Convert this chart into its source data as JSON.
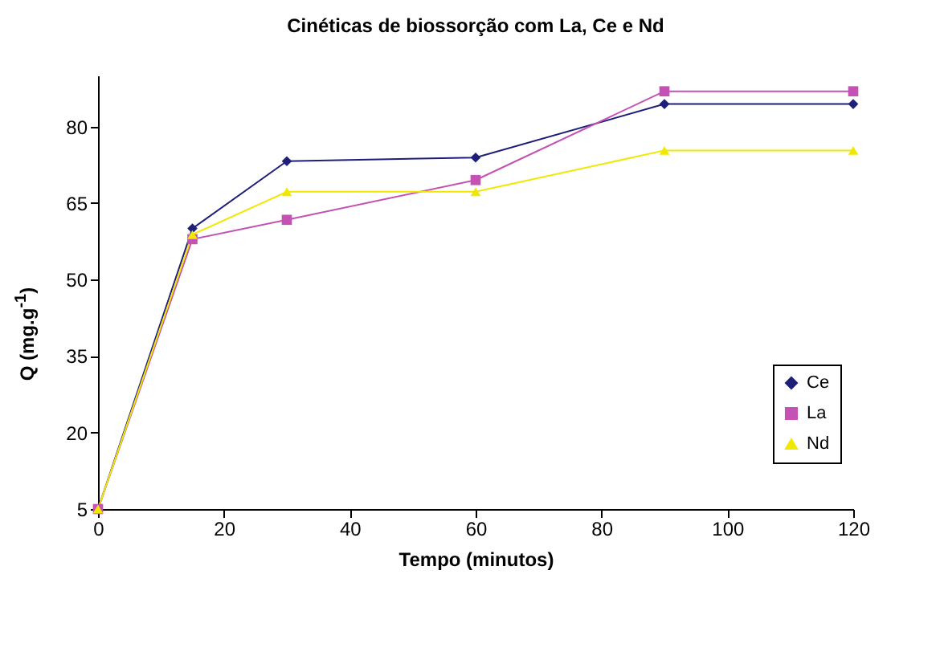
{
  "chart_data": {
    "type": "line",
    "title": "Cinéticas de biossorção com La, Ce e Nd",
    "xlabel": "Tempo (minutos)",
    "ylabel": "Q (mg.g$^{-1}$)",
    "x": [
      0,
      15,
      30,
      60,
      90,
      120
    ],
    "xlim": [
      0,
      120
    ],
    "xticks": [
      0,
      20,
      40,
      60,
      80,
      100,
      120
    ],
    "ylim": [
      5,
      90
    ],
    "yticks": [
      5,
      20,
      35,
      50,
      65,
      80
    ],
    "legend": "bottom right",
    "grid": false,
    "line_style": "solid",
    "series": [
      {
        "name": "Ce",
        "color": "#1f1f7a",
        "marker": "diamond",
        "values": [
          5,
          60,
          73.2,
          73.9,
          84.4,
          84.4
        ]
      },
      {
        "name": "La",
        "color": "#c452b4",
        "marker": "square",
        "values": [
          5,
          57.9,
          61.7,
          69.5,
          86.9,
          86.9
        ]
      },
      {
        "name": "Nd",
        "color": "#f0e800",
        "marker": "triangle",
        "values": [
          5,
          58.8,
          67.2,
          67.2,
          75.3,
          75.3
        ]
      }
    ]
  }
}
